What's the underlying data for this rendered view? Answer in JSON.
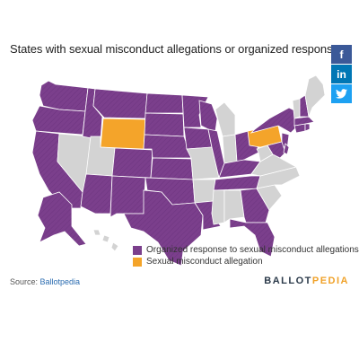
{
  "title": "States with sexual misconduct allegations or organized responses",
  "share": {
    "facebook": "f",
    "linkedin": "in",
    "twitter": "•"
  },
  "colors": {
    "organized": "#7b3f8c",
    "allegation": "#f4a42a",
    "none": "#d3d3d3",
    "border": "#ffffff",
    "facebook": "#3b5998",
    "linkedin": "#0077b5",
    "twitter": "#1da1f2",
    "brand_dark": "#2b3a4a",
    "brand_accent": "#f0a22a"
  },
  "legend": [
    {
      "label": "Organized response to sexual misconduct allegations",
      "category": "organized"
    },
    {
      "label": "Sexual misconduct allegation",
      "category": "allegation"
    }
  ],
  "source": {
    "prefix": "Source: ",
    "link": "Ballotpedia"
  },
  "brand": {
    "part1": "BALLOT",
    "part2": "PEDIA"
  },
  "states": {
    "WA": "organized",
    "OR": "organized",
    "CA": "organized",
    "NV": "none",
    "ID": "organized",
    "MT": "organized",
    "WY": "allegation",
    "UT": "none",
    "AZ": "organized",
    "CO": "organized",
    "NM": "organized",
    "ND": "organized",
    "SD": "organized",
    "NE": "organized",
    "KS": "organized",
    "OK": "organized",
    "TX": "organized",
    "MN": "organized",
    "IA": "organized",
    "MO": "none",
    "AR": "none",
    "LA": "organized",
    "WI": "organized",
    "IL": "organized",
    "MI": "none",
    "IN": "none",
    "OH": "organized",
    "KY": "organized",
    "TN": "organized",
    "MS": "none",
    "AL": "none",
    "GA": "organized",
    "FL": "organized",
    "SC": "none",
    "NC": "none",
    "VA": "none",
    "WV": "none",
    "PA": "allegation",
    "NY": "organized",
    "NJ": "organized",
    "MD": "organized",
    "DE": "organized",
    "CT": "organized",
    "RI": "organized",
    "MA": "organized",
    "VT": "none",
    "NH": "organized",
    "ME": "none",
    "AK": "organized",
    "HI": "none"
  }
}
